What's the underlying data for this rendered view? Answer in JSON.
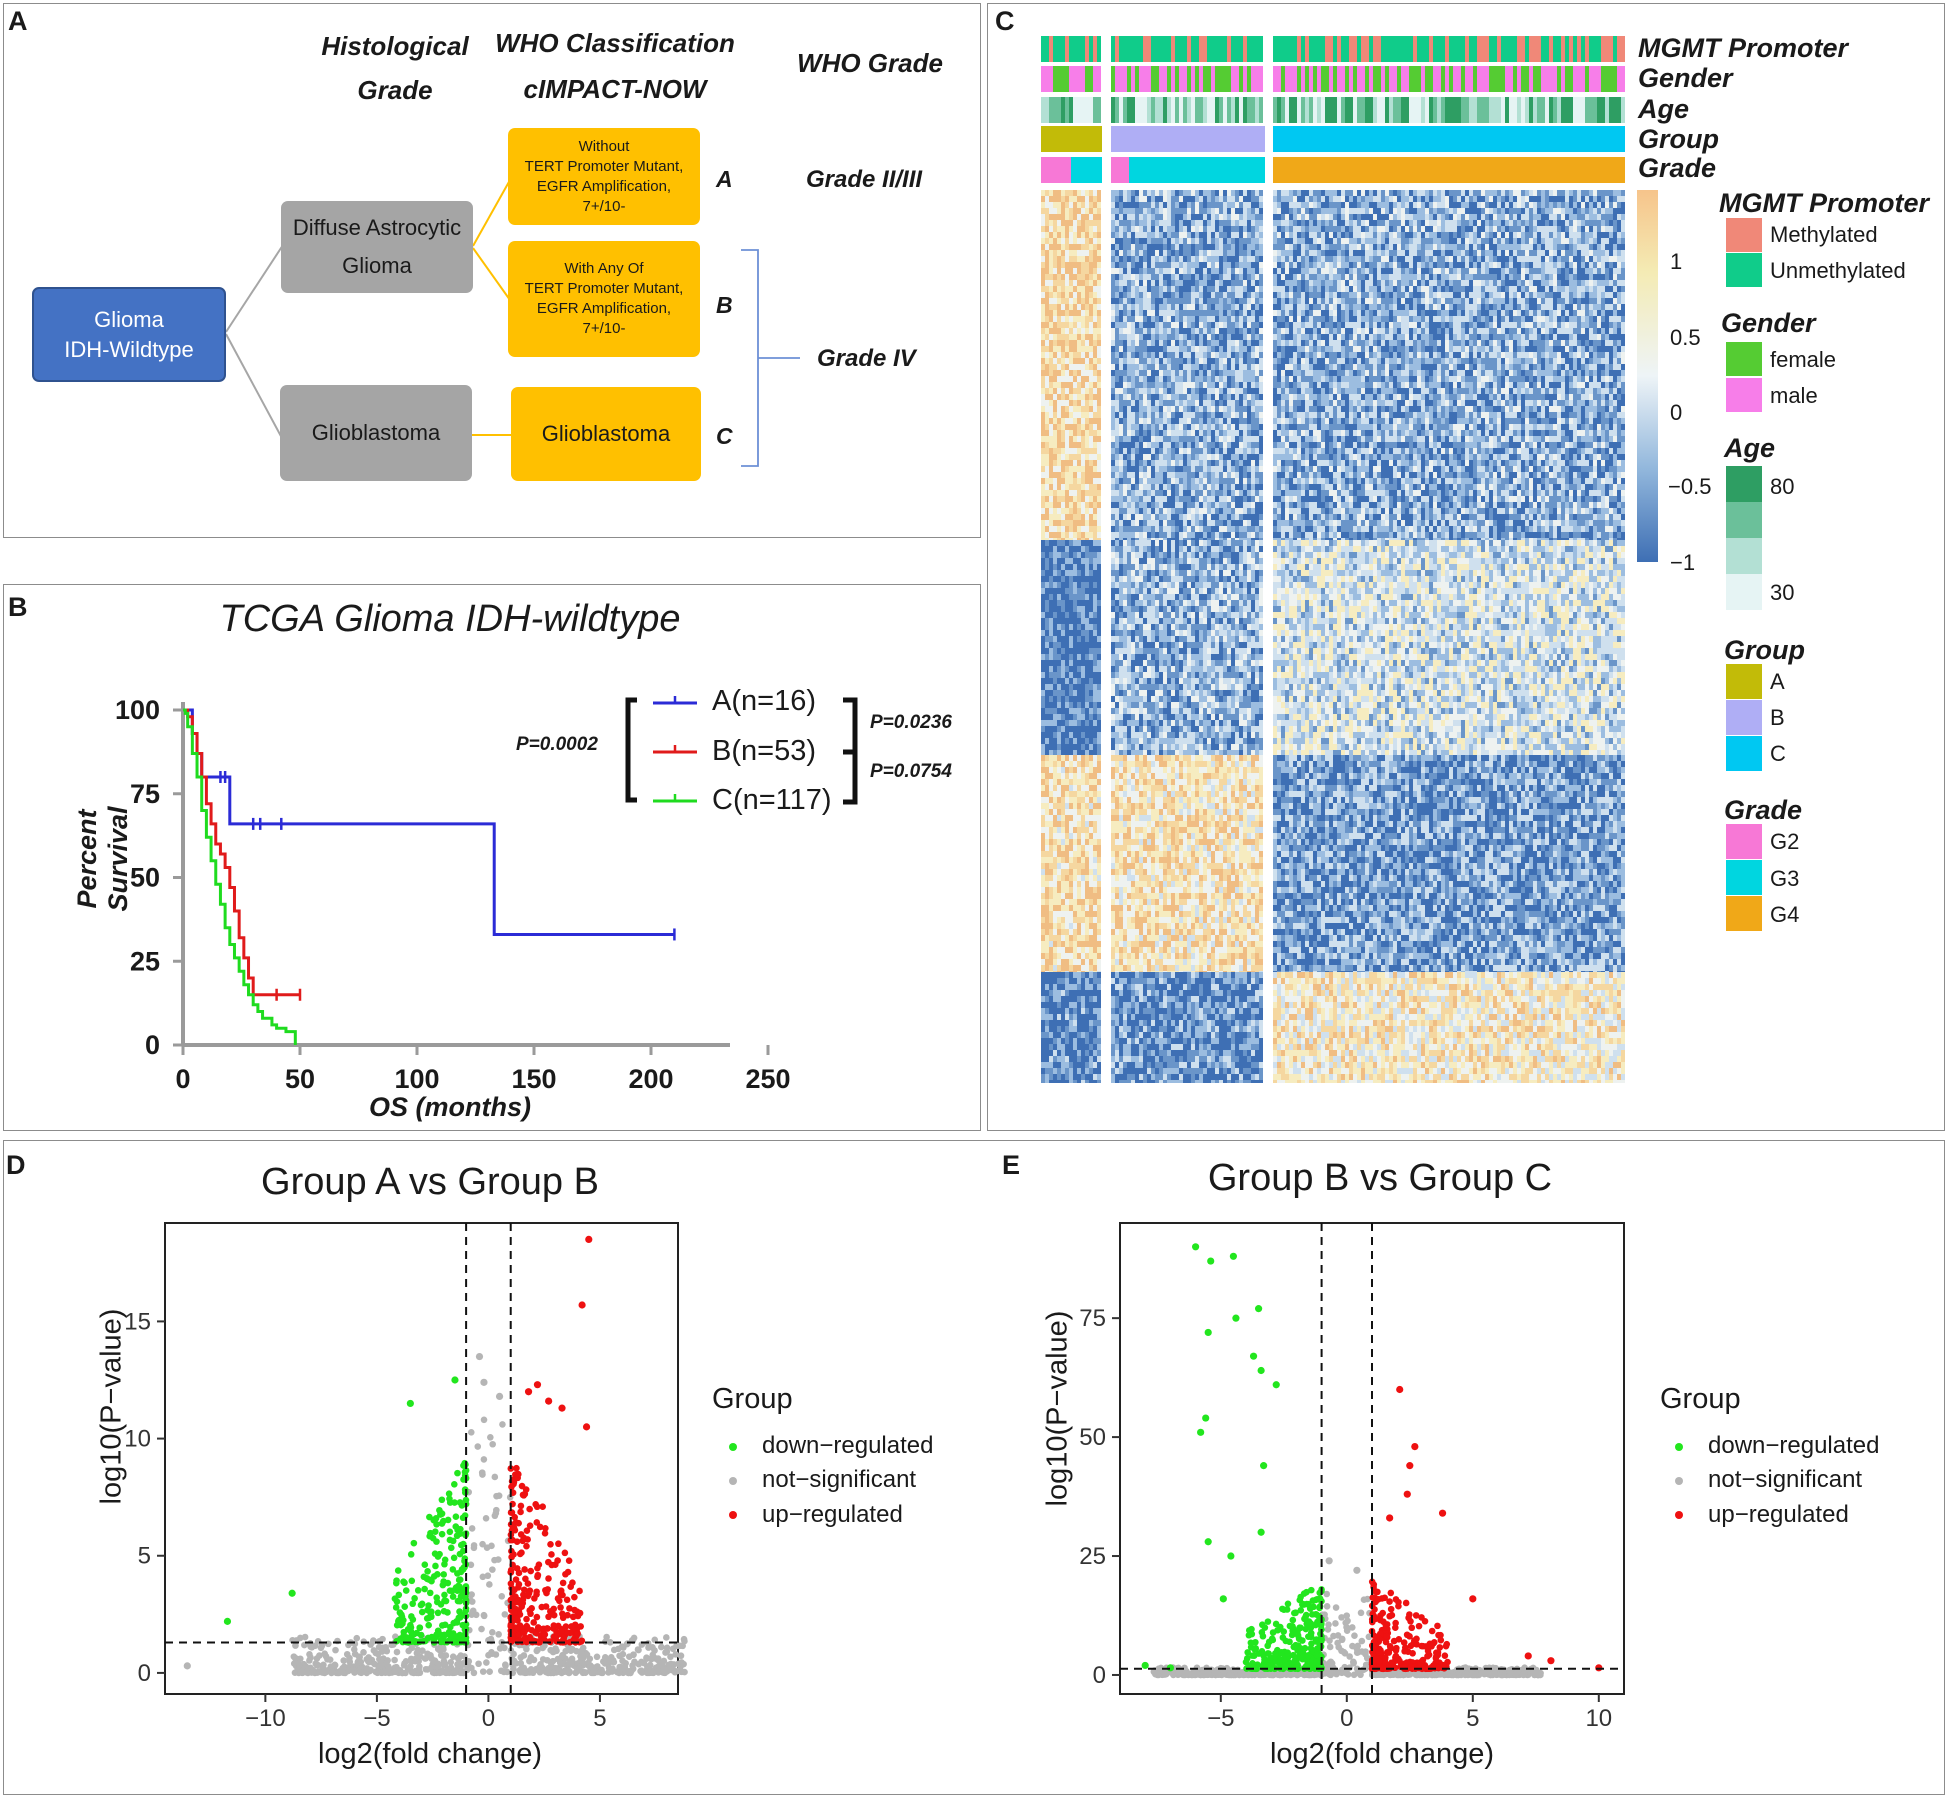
{
  "panelA": {
    "label": "A",
    "headers": {
      "hist_l1": "Histological",
      "hist_l2": "Grade",
      "who_l1": "WHO Classification",
      "who_l2": "cIMPACT-NOW",
      "grade": "WHO Grade"
    },
    "root": {
      "l1": "Glioma",
      "l2": "IDH-Wildtype"
    },
    "dag": {
      "l1": "Diffuse Astrocytic",
      "l2": "Glioma"
    },
    "gbm_hist": "Glioblastoma",
    "boxA": {
      "l1": "Without",
      "l2": "TERT Promoter Mutant,",
      "l3": "EGFR Amplification,",
      "l4": "7+/10-"
    },
    "boxB": {
      "l1": "With Any Of",
      "l2": "TERT Promoter Mutant,",
      "l3": "EGFR Amplification,",
      "l4": "7+/10-"
    },
    "boxC": "Glioblastoma",
    "letters": [
      "A",
      "B",
      "C"
    ],
    "gradeA": "Grade II/III",
    "gradeBC": "Grade IV"
  },
  "panelB": {
    "label": "B",
    "chart_data": {
      "type": "line",
      "title": "TCGA Glioma IDH-wildtype",
      "xlabel": "OS (months)",
      "ylabel": "Percent Survival",
      "xlim": [
        0,
        250
      ],
      "ylim": [
        0,
        100
      ],
      "xticks": [
        0,
        50,
        100,
        150,
        200,
        250
      ],
      "yticks": [
        0,
        25,
        50,
        75,
        100
      ],
      "series": [
        {
          "name": "A(n=16)",
          "color": "#2b2bd6",
          "x": [
            0,
            2,
            4,
            6,
            8,
            12,
            16,
            20,
            133,
            210
          ],
          "y": [
            100,
            100,
            93,
            87,
            80,
            80,
            80,
            66,
            33,
            33
          ],
          "censor_x": [
            16,
            18,
            30,
            33,
            42,
            210
          ],
          "censor_y": [
            80,
            80,
            66,
            66,
            66,
            33
          ]
        },
        {
          "name": "B(n=53)",
          "color": "#e01b1b",
          "x": [
            0,
            2,
            4,
            6,
            8,
            10,
            12,
            14,
            16,
            18,
            20,
            22,
            24,
            26,
            28,
            30,
            34,
            40,
            44,
            50
          ],
          "y": [
            100,
            98,
            93,
            87,
            80,
            72,
            66,
            60,
            57,
            53,
            47,
            40,
            32,
            26,
            20,
            15,
            15,
            15,
            15,
            15
          ],
          "censor_x": [
            40,
            50
          ],
          "censor_y": [
            15,
            15
          ]
        },
        {
          "name": "C(n=117)",
          "color": "#1fdb1f",
          "x": [
            0,
            1,
            2,
            4,
            6,
            8,
            10,
            12,
            14,
            16,
            18,
            20,
            22,
            24,
            26,
            28,
            30,
            32,
            34,
            38,
            40,
            44,
            48
          ],
          "y": [
            100,
            99,
            95,
            87,
            80,
            70,
            62,
            55,
            48,
            42,
            35,
            30,
            26,
            22,
            18,
            15,
            12,
            10,
            8,
            6,
            5,
            4,
            0
          ],
          "censor_x": [],
          "censor_y": []
        }
      ],
      "pvalues": {
        "overall": "P=0.0002",
        "ab": "P=0.0236",
        "bc": "P=0.0754"
      }
    }
  },
  "panelC": {
    "label": "C",
    "tracks": [
      "MGMT Promoter",
      "Gender",
      "Age",
      "Group",
      "Grade"
    ],
    "colorbar": {
      "ticks": [
        "1",
        "0.5",
        "0",
        "−0.5",
        "−1"
      ]
    },
    "legends": {
      "mgmt": {
        "title": "MGMT Promoter",
        "items": [
          {
            "label": "Methylated",
            "color": "#f08878"
          },
          {
            "label": "Unmethylated",
            "color": "#10cc8a"
          }
        ]
      },
      "gender": {
        "title": "Gender",
        "items": [
          {
            "label": "female",
            "color": "#55cc33"
          },
          {
            "label": "male",
            "color": "#f77ee9"
          }
        ]
      },
      "age": {
        "title": "Age",
        "labels": [
          "80",
          "30"
        ],
        "colors": [
          "#2e9e63",
          "#6bc09a",
          "#b3e0d4",
          "#e6f4f4"
        ]
      },
      "group": {
        "title": "Group",
        "items": [
          {
            "label": "A",
            "color": "#c2bb08"
          },
          {
            "label": "B",
            "color": "#afaef5"
          },
          {
            "label": "C",
            "color": "#00c8f2"
          }
        ]
      },
      "grade": {
        "title": "Grade",
        "items": [
          {
            "label": "G2",
            "color": "#f778d6"
          },
          {
            "label": "G3",
            "color": "#00d6e0"
          },
          {
            "label": "G4",
            "color": "#f0a818"
          }
        ]
      }
    }
  },
  "panelD": {
    "label": "D",
    "chart_data": {
      "type": "scatter",
      "title": "Group A vs Group B",
      "xlabel": "log2(fold change)",
      "ylabel": "log10(P−value)",
      "xlim": [
        -14.5,
        8.5
      ],
      "ylim": [
        -0.9,
        19.2
      ],
      "xticks": [
        -10,
        -5,
        0,
        5
      ],
      "xtick_labels": [
        "−10",
        "−5",
        "0",
        "5"
      ],
      "yticks": [
        0,
        5,
        10,
        15
      ],
      "vlines": [
        -1,
        1
      ],
      "hline": 1.3,
      "legend": {
        "title": "Group",
        "items": [
          "down−regulated",
          "not−significant",
          "up−regulated"
        ]
      },
      "outliers": {
        "up": [
          [
            4.5,
            18.5
          ],
          [
            4.2,
            15.7
          ],
          [
            4.4,
            10.5
          ],
          [
            3.3,
            11.3
          ],
          [
            2.7,
            11.6
          ],
          [
            2.2,
            12.3
          ],
          [
            1.8,
            12.0
          ]
        ],
        "down": [
          [
            -11.7,
            2.2
          ],
          [
            -8.8,
            3.4
          ],
          [
            -3.5,
            11.5
          ],
          [
            -1.5,
            12.5
          ]
        ],
        "ns": [
          [
            -0.4,
            13.5
          ],
          [
            -0.2,
            12.4
          ],
          [
            0.5,
            11.8
          ],
          [
            -13.5,
            0.3
          ],
          [
            7.3,
            0.6
          ]
        ]
      }
    }
  },
  "panelE": {
    "label": "E",
    "chart_data": {
      "type": "scatter",
      "title": "Group B vs Group C",
      "xlabel": "log2(fold change)",
      "ylabel": "log10(P−value)",
      "xlim": [
        -9,
        11
      ],
      "ylim": [
        -4,
        95
      ],
      "xticks": [
        -5,
        0,
        5,
        10
      ],
      "xtick_labels": [
        "−5",
        "0",
        "5",
        "10"
      ],
      "yticks": [
        0,
        25,
        50,
        75
      ],
      "vlines": [
        -1,
        1
      ],
      "hline": 1.3,
      "legend": {
        "title": "Group",
        "items": [
          "down−regulated",
          "not−significant",
          "up−regulated"
        ]
      },
      "outliers": {
        "down": [
          [
            -6,
            90
          ],
          [
            -5.4,
            87
          ],
          [
            -4.5,
            88
          ],
          [
            -5.5,
            72
          ],
          [
            -4.4,
            75
          ],
          [
            -3.5,
            77
          ],
          [
            -3.7,
            67
          ],
          [
            -3.4,
            64
          ],
          [
            -2.8,
            61
          ],
          [
            -5.6,
            54
          ],
          [
            -5.8,
            51
          ],
          [
            -3.3,
            44
          ],
          [
            -5.5,
            28
          ],
          [
            -4.6,
            25
          ],
          [
            -3.4,
            30
          ],
          [
            -4.9,
            16
          ],
          [
            -8,
            2
          ],
          [
            -7,
            1.5
          ]
        ],
        "up": [
          [
            2.1,
            60
          ],
          [
            2.7,
            48
          ],
          [
            2.5,
            44
          ],
          [
            2.4,
            38
          ],
          [
            3.8,
            34
          ],
          [
            1.7,
            33
          ],
          [
            5.0,
            16
          ],
          [
            7.2,
            4
          ],
          [
            8.1,
            3
          ],
          [
            10,
            1.5
          ]
        ],
        "ns": [
          [
            -0.7,
            24
          ],
          [
            0.4,
            22
          ]
        ]
      }
    }
  }
}
